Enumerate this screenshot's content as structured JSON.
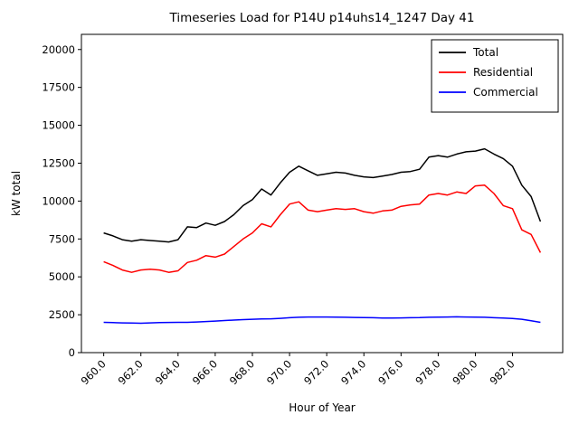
{
  "chart_data": {
    "type": "line",
    "title": "Timeseries Load for P14U p14uhs14_1247  Day 41",
    "xlabel": "Hour of Year",
    "ylabel": "kW total",
    "xlim": [
      958.8,
      984.7
    ],
    "ylim": [
      0,
      21000
    ],
    "grid": false,
    "legend_position": "upper right",
    "x_tick_labels": [
      "960.0",
      "962.0",
      "964.0",
      "966.0",
      "968.0",
      "970.0",
      "972.0",
      "974.0",
      "976.0",
      "978.0",
      "980.0",
      "982.0"
    ],
    "x_tick_values": [
      960,
      962,
      964,
      966,
      968,
      970,
      972,
      974,
      976,
      978,
      980,
      982
    ],
    "y_tick_labels": [
      "0",
      "2500",
      "5000",
      "7500",
      "10000",
      "12500",
      "15000",
      "17500",
      "20000"
    ],
    "y_tick_values": [
      0,
      2500,
      5000,
      7500,
      10000,
      12500,
      15000,
      17500,
      20000
    ],
    "x": [
      960.0,
      960.5,
      961.0,
      961.5,
      962.0,
      962.5,
      963.0,
      963.5,
      964.0,
      964.5,
      965.0,
      965.5,
      966.0,
      966.5,
      967.0,
      967.5,
      968.0,
      968.5,
      969.0,
      969.5,
      970.0,
      970.5,
      971.0,
      971.5,
      972.0,
      972.5,
      973.0,
      973.5,
      974.0,
      974.5,
      975.0,
      975.5,
      976.0,
      976.5,
      977.0,
      977.5,
      978.0,
      978.5,
      979.0,
      979.5,
      980.0,
      980.5,
      981.0,
      981.5,
      982.0,
      982.5,
      983.0,
      983.5
    ],
    "series": [
      {
        "name": "Total",
        "color": "#000000",
        "values": [
          7900,
          7700,
          7450,
          7350,
          7450,
          7400,
          7350,
          7300,
          7450,
          8300,
          8250,
          8550,
          8400,
          8650,
          9100,
          9700,
          10100,
          10800,
          10400,
          11200,
          11900,
          12300,
          12000,
          11700,
          11800,
          11900,
          11850,
          11700,
          11600,
          11550,
          11650,
          11750,
          11900,
          11950,
          12100,
          12900,
          13000,
          12900,
          13100,
          13250,
          13300,
          13450,
          13100,
          12800,
          12300,
          11050,
          10300,
          8650
        ]
      },
      {
        "name": "Residential",
        "color": "#ff0000",
        "values": [
          6000,
          5750,
          5450,
          5300,
          5450,
          5500,
          5450,
          5300,
          5400,
          5950,
          6100,
          6400,
          6300,
          6500,
          7000,
          7500,
          7900,
          8500,
          8300,
          9100,
          9800,
          9950,
          9400,
          9300,
          9400,
          9500,
          9450,
          9500,
          9300,
          9200,
          9350,
          9400,
          9650,
          9750,
          9800,
          10400,
          10500,
          10400,
          10600,
          10500,
          11000,
          11050,
          10500,
          9700,
          9500,
          8100,
          7800,
          6600
        ]
      },
      {
        "name": "Commercial",
        "color": "#0000ff",
        "values": [
          2000,
          1980,
          1960,
          1950,
          1940,
          1960,
          1980,
          1990,
          2000,
          2000,
          2020,
          2050,
          2080,
          2120,
          2150,
          2180,
          2200,
          2220,
          2230,
          2260,
          2300,
          2330,
          2350,
          2350,
          2350,
          2340,
          2330,
          2320,
          2310,
          2300,
          2280,
          2280,
          2290,
          2300,
          2310,
          2330,
          2340,
          2350,
          2360,
          2350,
          2340,
          2330,
          2300,
          2280,
          2250,
          2200,
          2100,
          2000
        ]
      }
    ]
  }
}
